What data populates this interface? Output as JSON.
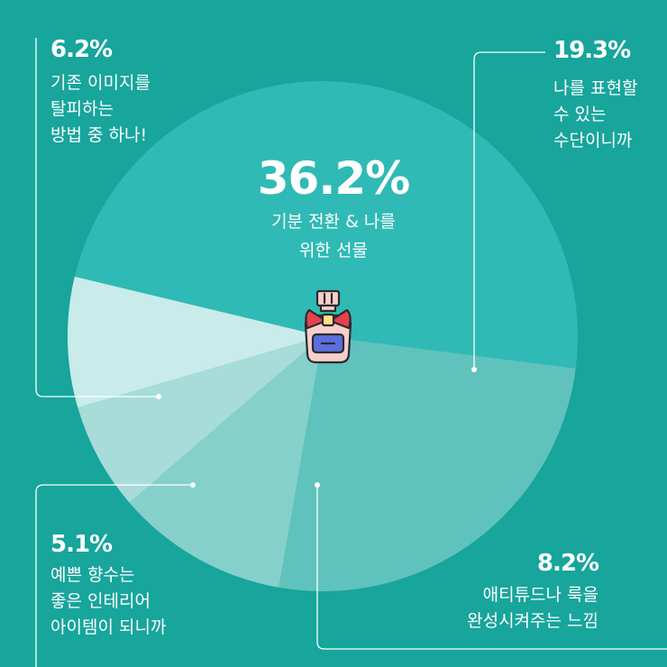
{
  "colors": {
    "background": "#17a59c",
    "slices": [
      "#2fbab5",
      "#60c2bc",
      "#85d0ca",
      "#a7dcd8",
      "#c9ebea"
    ],
    "line": "#ffffff",
    "icon_bottle": "#f6cfcd",
    "icon_label": "#5a6fdc",
    "icon_bow": "#e7414f",
    "icon_cap": "#ffe08a"
  },
  "icon": "perfume-gift-icon",
  "labels": {
    "center": {
      "pct": "36.2%",
      "desc": "기분 전환 & 나를\n위한 선물"
    },
    "top_left": {
      "pct": "6.2%",
      "desc": "기존 이미지를\n탈피하는\n방법 중 하나!"
    },
    "top_right": {
      "pct": "19.3%",
      "desc": "나를 표현할\n수 있는\n수단이니까"
    },
    "bottom_left": {
      "pct": "5.1%",
      "desc": "예쁜 향수는\n좋은 인테리어\n아이템이 되니까"
    },
    "bottom_right": {
      "pct": "8.2%",
      "desc": "애티튜드나 룩을\n완성시켜주는 느낌"
    }
  },
  "chart_data": {
    "type": "pie",
    "slices": [
      {
        "label": "기분 전환 & 나를 위한 선물",
        "value": 36.2
      },
      {
        "label": "나를 표현할 수 있는 수단이니까",
        "value": 19.3
      },
      {
        "label": "애티튜드나 룩을 완성시켜주는 느낌",
        "value": 8.2
      },
      {
        "label": "예쁜 향수는 좋은 인테리어 아이템이 되니까",
        "value": 5.1
      },
      {
        "label": "기존 이미지를 탈피하는 방법 중 하나!",
        "value": 6.2
      }
    ]
  }
}
